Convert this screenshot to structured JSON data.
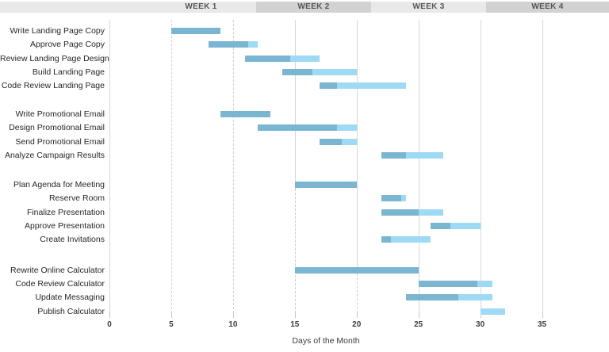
{
  "header": {
    "weeks": [
      {
        "label": "WEEK 1"
      },
      {
        "label": "WEEK 2"
      },
      {
        "label": "WEEK 3"
      },
      {
        "label": "WEEK 4"
      }
    ]
  },
  "chart_data": {
    "type": "gantt",
    "xlabel": "Days of the Month",
    "x_ticks": [
      0,
      5,
      10,
      15,
      20,
      25,
      30,
      35
    ],
    "xlim": [
      0,
      40
    ],
    "grid": "vertical",
    "bar_colors": {
      "complete": "#7ab5d2",
      "remaining": "#9edaf6"
    },
    "groups": [
      {
        "tasks": [
          {
            "name": "Write Landing Page Copy",
            "start": 5,
            "end": 9,
            "percent_complete": 100
          },
          {
            "name": "Approve Page Copy",
            "start": 8,
            "end": 12,
            "percent_complete": 80
          },
          {
            "name": "Review Landing Page Design",
            "start": 11,
            "end": 17,
            "percent_complete": 60
          },
          {
            "name": "Build Landing Page",
            "start": 14,
            "end": 20,
            "percent_complete": 40
          },
          {
            "name": "Code Review Landing Page",
            "start": 17,
            "end": 24,
            "percent_complete": 20
          }
        ]
      },
      {
        "tasks": [
          {
            "name": "Write Promotional Email",
            "start": 9,
            "end": 13,
            "percent_complete": 100
          },
          {
            "name": "Design Promotional Email",
            "start": 12,
            "end": 20,
            "percent_complete": 80
          },
          {
            "name": "Send Promotional Email",
            "start": 17,
            "end": 20,
            "percent_complete": 60
          },
          {
            "name": "Analyze Campaign Results",
            "start": 22,
            "end": 27,
            "percent_complete": 40
          }
        ]
      },
      {
        "tasks": [
          {
            "name": "Plan Agenda for Meeting",
            "start": 15,
            "end": 20,
            "percent_complete": 100
          },
          {
            "name": "Reserve Room",
            "start": 22,
            "end": 24,
            "percent_complete": 80
          },
          {
            "name": "Finalize Presentation",
            "start": 22,
            "end": 27,
            "percent_complete": 60
          },
          {
            "name": "Approve Presentation",
            "start": 26,
            "end": 30,
            "percent_complete": 40
          },
          {
            "name": "Create Invitations",
            "start": 22,
            "end": 26,
            "percent_complete": 20
          }
        ]
      },
      {
        "tasks": [
          {
            "name": "Rewrite Online Calculator",
            "start": 15,
            "end": 25,
            "percent_complete": 100
          },
          {
            "name": "Code Review Calculator",
            "start": 25,
            "end": 31,
            "percent_complete": 80
          },
          {
            "name": "Update Messaging",
            "start": 24,
            "end": 31,
            "percent_complete": 60
          },
          {
            "name": "Publish Calculator",
            "start": 30,
            "end": 32,
            "percent_complete": 0
          }
        ]
      }
    ]
  }
}
